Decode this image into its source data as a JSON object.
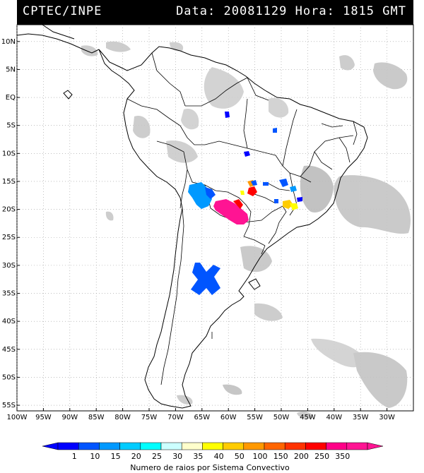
{
  "header": {
    "org": "CPTEC/INPE",
    "data_label": "Data:",
    "date": "20081129",
    "hora_label": "Hora:",
    "time": "1815",
    "tz": "GMT"
  },
  "map": {
    "lat_labels": [
      "10N",
      "5N",
      "EQ",
      "5S",
      "10S",
      "15S",
      "20S",
      "25S",
      "30S",
      "35S",
      "40S",
      "45S",
      "50S",
      "55S"
    ],
    "lat_values": [
      10,
      5,
      0,
      -5,
      -10,
      -15,
      -20,
      -25,
      -30,
      -35,
      -40,
      -45,
      -50,
      -55
    ],
    "lon_labels": [
      "100W",
      "95W",
      "90W",
      "85W",
      "80W",
      "75W",
      "70W",
      "65W",
      "60W",
      "55W",
      "50W",
      "45W",
      "40W",
      "35W",
      "30W"
    ],
    "lon_values": [
      -100,
      -95,
      -90,
      -85,
      -80,
      -75,
      -70,
      -65,
      -60,
      -55,
      -50,
      -45,
      -40,
      -35,
      -30
    ],
    "lat_range": [
      -56,
      13
    ],
    "lon_range": [
      -100,
      -25
    ]
  },
  "legend": {
    "labels": [
      "1",
      "10",
      "15",
      "20",
      "25",
      "30",
      "35",
      "40",
      "50",
      "100",
      "150",
      "200",
      "250",
      "350"
    ],
    "colors": [
      "#0000ff",
      "#0055ff",
      "#0099ff",
      "#00ccff",
      "#00ffff",
      "#ccffff",
      "#ffffcc",
      "#ffff00",
      "#ffcc00",
      "#ff9900",
      "#ff6600",
      "#ff3300",
      "#ff0000",
      "#ff0088",
      "#ff1493"
    ],
    "caption": "Numero de raios por Sistema Convectivo"
  }
}
